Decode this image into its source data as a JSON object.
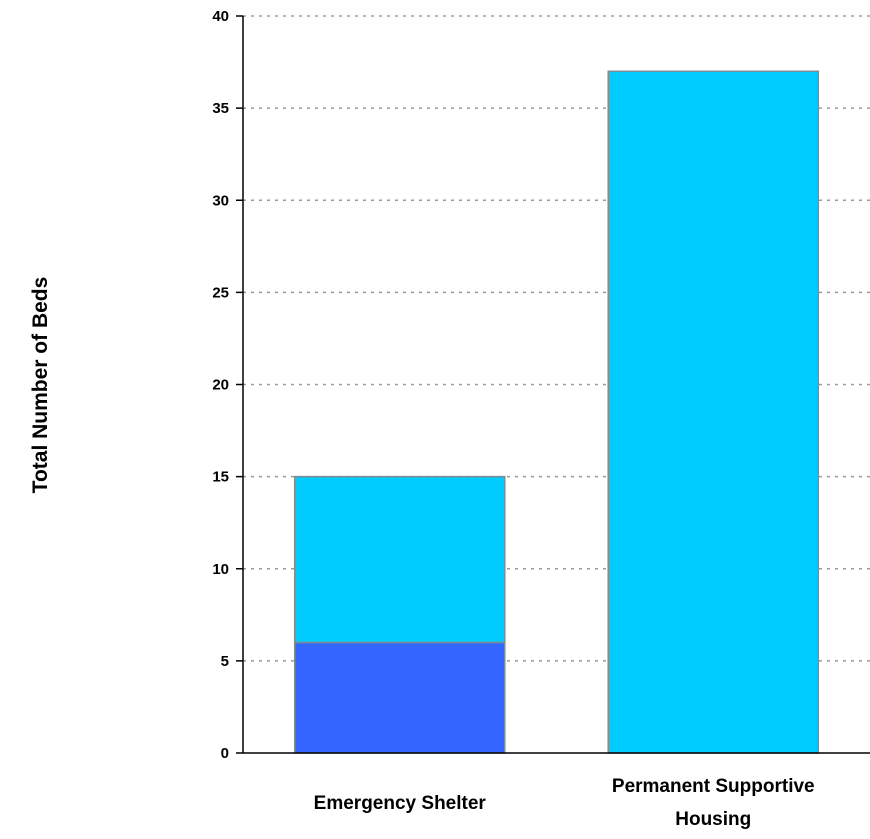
{
  "chart_data": {
    "type": "bar",
    "stacked": true,
    "ylabel": "Total Number of Beds",
    "xlabel": "",
    "ylim": [
      0,
      40
    ],
    "yticks": [
      "0",
      "5",
      "10",
      "15",
      "20",
      "25",
      "30",
      "35",
      "40"
    ],
    "categories": [
      [
        "Emergency Shelter"
      ],
      [
        "Permanent Supportive",
        "Housing"
      ]
    ],
    "series": [
      {
        "values": [
          6,
          0
        ],
        "color": "#3366ff"
      },
      {
        "values": [
          9,
          37
        ],
        "color": "#00ccff"
      }
    ],
    "grid": "horizontal-dotted",
    "legend": "none"
  }
}
